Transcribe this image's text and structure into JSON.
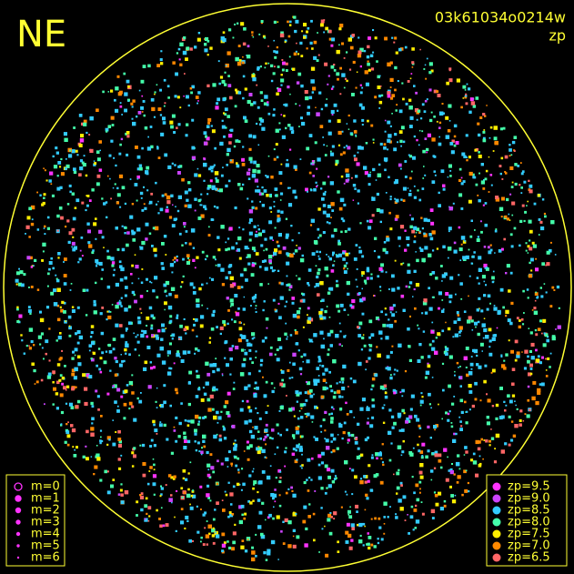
{
  "header": {
    "corner": "NE",
    "frame_id": "03k61034o0214w",
    "mode": "zp"
  },
  "magnitude_legend": {
    "color": "#ff33ff",
    "items": [
      "m=0",
      "m=1",
      "m=2",
      "m=3",
      "m=4",
      "m=5",
      "m=6"
    ]
  },
  "zp_legend": {
    "items": [
      {
        "label": "zp=9.5",
        "color": "#ff33ff"
      },
      {
        "label": "zp=9.0",
        "color": "#cc44ff"
      },
      {
        "label": "zp=8.5",
        "color": "#33ccff"
      },
      {
        "label": "zp=8.0",
        "color": "#44ffaa"
      },
      {
        "label": "zp=7.5",
        "color": "#ffee00"
      },
      {
        "label": "zp=7.0",
        "color": "#ff8800"
      },
      {
        "label": "zp=6.5",
        "color": "#ff6666"
      }
    ]
  }
}
